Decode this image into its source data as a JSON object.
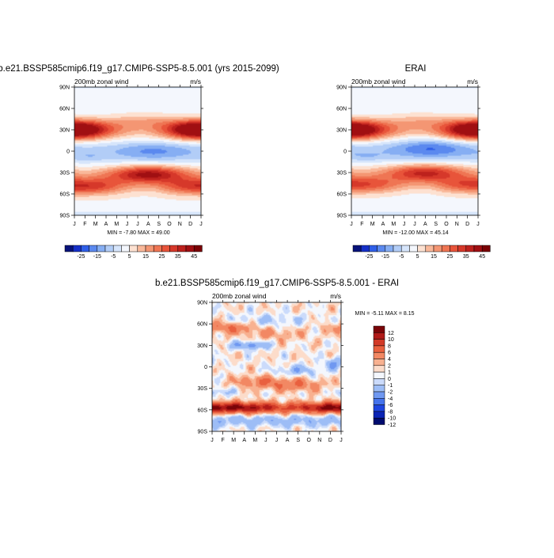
{
  "chart_data": [
    {
      "type": "heatmap",
      "title": "b.e21.BSSP585cmip6.f19_g17.CMIP6-SSP5-8.5.001 (yrs 2015-2099)",
      "subtitle_left": "200mb zonal wind",
      "subtitle_right": "m/s",
      "x_ticks": [
        "J",
        "F",
        "M",
        "A",
        "M",
        "J",
        "J",
        "A",
        "S",
        "O",
        "N",
        "D",
        "J"
      ],
      "y_ticks": [
        "90N",
        "60N",
        "30N",
        "0",
        "30S",
        "60S",
        "90S"
      ],
      "stats": "MIN =  -7.80 MAX =  49.00",
      "colorbar_labels": [
        "-25",
        "-15",
        "-5",
        "5",
        "15",
        "25",
        "35",
        "45"
      ],
      "levels": [
        -30,
        -25,
        -20,
        -15,
        -10,
        -5,
        0,
        5,
        10,
        15,
        20,
        25,
        30,
        35,
        40,
        45,
        50
      ],
      "features": [
        {
          "lat": 30,
          "month": 0.5,
          "value": 40
        },
        {
          "lat": 30,
          "month": 11.5,
          "value": 38
        },
        {
          "lat": -32,
          "month": 7,
          "value": 49
        },
        {
          "lat": -50,
          "month": 1.5,
          "value": 37
        },
        {
          "lat": 0,
          "month": 7.5,
          "value": -7.8
        }
      ]
    },
    {
      "type": "heatmap",
      "title": "ERAI",
      "subtitle_left": "200mb zonal wind",
      "subtitle_right": "m/s",
      "x_ticks": [
        "J",
        "F",
        "M",
        "A",
        "M",
        "J",
        "J",
        "A",
        "S",
        "O",
        "N",
        "D",
        "J"
      ],
      "y_ticks": [
        "90N",
        "60N",
        "30N",
        "0",
        "30S",
        "60S",
        "90S"
      ],
      "stats": "MIN = -12.00 MAX =  45.14",
      "colorbar_labels": [
        "-25",
        "-15",
        "-5",
        "5",
        "15",
        "25",
        "35",
        "45"
      ],
      "levels": [
        -30,
        -25,
        -20,
        -15,
        -10,
        -5,
        0,
        5,
        10,
        15,
        20,
        25,
        30,
        35,
        40,
        45,
        50
      ],
      "features": [
        {
          "lat": 30,
          "month": 0.5,
          "value": 40
        },
        {
          "lat": 30,
          "month": 11.5,
          "value": 38
        },
        {
          "lat": -30,
          "month": 7,
          "value": 45
        },
        {
          "lat": -48,
          "month": 1.5,
          "value": 34
        },
        {
          "lat": 5,
          "month": 7.5,
          "value": -12
        }
      ]
    },
    {
      "type": "heatmap",
      "title": "b.e21.BSSP585cmip6.f19_g17.CMIP6-SSP5-8.5.001 - ERAI",
      "subtitle_left": "200mb zonal wind",
      "subtitle_right": "m/s",
      "x_ticks": [
        "J",
        "F",
        "M",
        "A",
        "M",
        "J",
        "J",
        "A",
        "S",
        "O",
        "N",
        "D",
        "J"
      ],
      "y_ticks": [
        "90N",
        "60N",
        "30N",
        "0",
        "30S",
        "60S",
        "90S"
      ],
      "stats": "MIN =  -5.11 MAX =   8.15",
      "colorbar_labels": [
        "12",
        "10",
        "8",
        "6",
        "4",
        "2",
        "1",
        "0",
        "-1",
        "-2",
        "-4",
        "-6",
        "-8",
        "-10",
        "-12"
      ],
      "levels": [
        -12,
        -10,
        -8,
        -6,
        -4,
        -2,
        -1,
        0,
        1,
        2,
        4,
        6,
        8,
        10,
        12
      ],
      "features": [
        {
          "lat": -57,
          "month": 3,
          "value": 8.2
        },
        {
          "lat": -57,
          "month": 10.5,
          "value": 7
        },
        {
          "lat": 30,
          "month": 3.5,
          "value": -5.1
        },
        {
          "lat": 55,
          "month": 1.5,
          "value": 4
        },
        {
          "lat": -25,
          "month": 7.5,
          "value": 5
        }
      ]
    }
  ],
  "colors": {
    "diverging_17": [
      "#08127a",
      "#1530c8",
      "#2f5fe8",
      "#5b89ef",
      "#86aef3",
      "#b2cdf7",
      "#d6e5fb",
      "#f4f7fd",
      "#fde1d1",
      "#f9b89a",
      "#f49673",
      "#ef7553",
      "#e8543a",
      "#d6382a",
      "#bd211d",
      "#a00f12",
      "#7a0205"
    ],
    "diff_14": [
      "#000b6e",
      "#0b24b5",
      "#1e45e0",
      "#4573ec",
      "#6f98f1",
      "#9dbdf6",
      "#cbdbfb",
      "#f4f7fd",
      "#fcdcca",
      "#f8b190",
      "#f28863",
      "#e9603e",
      "#d23a27",
      "#b01a18",
      "#7a0408"
    ]
  }
}
